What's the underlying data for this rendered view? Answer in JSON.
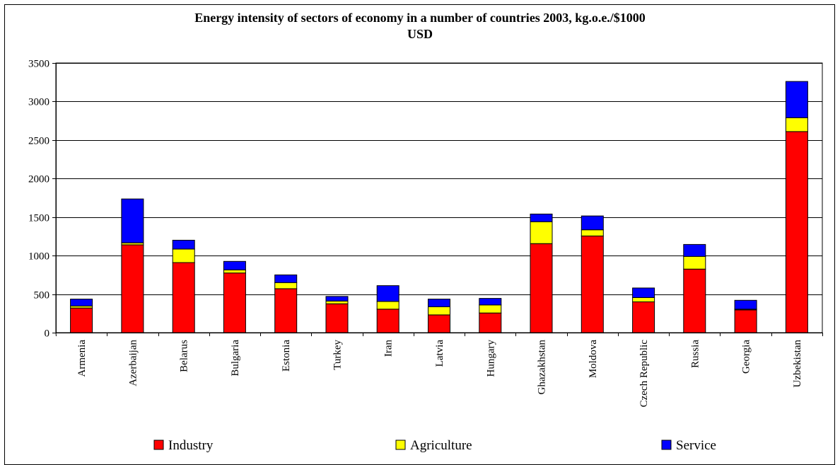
{
  "chart_data": {
    "type": "bar",
    "stacked": true,
    "title_line1": "Energy intensity of sectors of economy in a number of countries 2003, kg.o.e./$1000",
    "title_line2": "USD",
    "categories": [
      "Armenia",
      "Azerbaijan",
      "Belarus",
      "Bulgaria",
      "Estonia",
      "Turkey",
      "Iran",
      "Latvia",
      "Hungary",
      "Ghazakhstan",
      "Moldova",
      "Czech Republic",
      "Russia",
      "Georgia",
      "Uzbekistan"
    ],
    "series": [
      {
        "name": "Industry",
        "color": "#ff0000",
        "values": [
          320,
          1140,
          910,
          775,
          570,
          375,
          305,
          230,
          255,
          1155,
          1255,
          400,
          825,
          295,
          2610
        ]
      },
      {
        "name": "Agriculture",
        "color": "#ffff00",
        "values": [
          25,
          25,
          175,
          40,
          80,
          35,
          100,
          105,
          105,
          285,
          80,
          55,
          165,
          10,
          180
        ]
      },
      {
        "name": "Service",
        "color": "#0000ff",
        "values": [
          90,
          570,
          115,
          110,
          100,
          60,
          205,
          100,
          85,
          100,
          180,
          125,
          155,
          115,
          470
        ]
      }
    ],
    "y_ticks": [
      "0",
      "500",
      "1000",
      "1500",
      "2000",
      "2500",
      "3000",
      "3500"
    ],
    "ylim": [
      0,
      3500
    ],
    "grid": true,
    "legend_position": "bottom"
  }
}
